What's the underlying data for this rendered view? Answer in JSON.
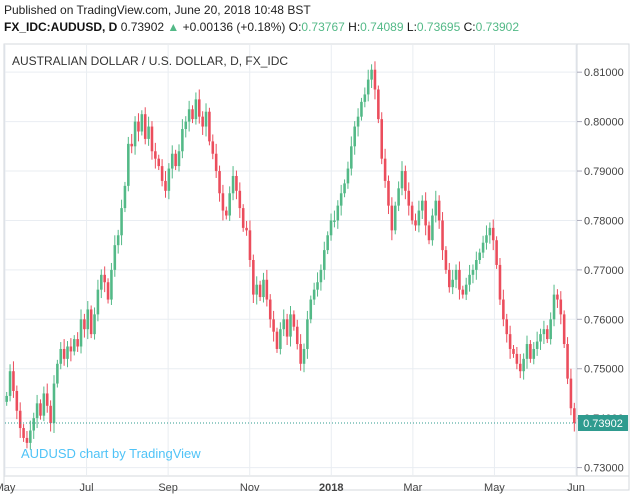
{
  "published": "Published on TradingView.com, June 20, 2018 10:48 BST",
  "header": {
    "symbol": "FX_IDC:AUDUSD, D",
    "last": "0.73902",
    "arrow": "▲",
    "change": "+0.00136 (+0.18%)",
    "o_label": "O:",
    "o": "0.73767",
    "h_label": "H:",
    "h": "0.74089",
    "l_label": "L:",
    "l": "0.73695",
    "c_label": "C:",
    "c": "0.73902"
  },
  "chart_data": {
    "type": "candlestick",
    "title": "AUSTRALIAN DOLLAR / U.S. DOLLAR, D, FX_IDC",
    "watermark": "AUDUSD chart by TradingView",
    "ylim": [
      0.7285,
      0.8155
    ],
    "yticks": [
      "0.81000",
      "0.80000",
      "0.79000",
      "0.78000",
      "0.77000",
      "0.76000",
      "0.75000",
      "0.74000",
      "0.73000"
    ],
    "xticks": [
      "May",
      "Jul",
      "Sep",
      "Nov",
      "2018",
      "Mar",
      "May",
      "Jun"
    ],
    "last_price_label": "0.73902",
    "last_price": 0.73902,
    "colors": {
      "up": "#53b987",
      "down": "#eb4d5c",
      "grid": "#e9edf2",
      "last": "#2f9b8f"
    },
    "grid": true,
    "closes": [
      0.7445,
      0.7495,
      0.7455,
      0.7415,
      0.738,
      0.736,
      0.735,
      0.7375,
      0.74,
      0.743,
      0.7405,
      0.745,
      0.7425,
      0.739,
      0.747,
      0.751,
      0.754,
      0.752,
      0.7545,
      0.7535,
      0.756,
      0.7545,
      0.76,
      0.758,
      0.762,
      0.757,
      0.761,
      0.766,
      0.769,
      0.7675,
      0.764,
      0.77,
      0.775,
      0.777,
      0.7825,
      0.787,
      0.7955,
      0.795,
      0.8,
      0.798,
      0.8015,
      0.7965,
      0.799,
      0.794,
      0.7925,
      0.791,
      0.788,
      0.786,
      0.7905,
      0.7935,
      0.791,
      0.794,
      0.7985,
      0.8,
      0.8025,
      0.8005,
      0.8045,
      0.801,
      0.799,
      0.802,
      0.796,
      0.7935,
      0.79,
      0.7855,
      0.782,
      0.781,
      0.7855,
      0.789,
      0.786,
      0.7825,
      0.7785,
      0.778,
      0.772,
      0.765,
      0.767,
      0.7645,
      0.768,
      0.764,
      0.76,
      0.7575,
      0.754,
      0.758,
      0.76,
      0.7565,
      0.761,
      0.7585,
      0.755,
      0.751,
      0.754,
      0.76,
      0.764,
      0.766,
      0.7675,
      0.77,
      0.774,
      0.777,
      0.78,
      0.78,
      0.783,
      0.7855,
      0.7875,
      0.7905,
      0.795,
      0.799,
      0.801,
      0.804,
      0.8055,
      0.8085,
      0.8105,
      0.8065,
      0.8005,
      0.7925,
      0.788,
      0.783,
      0.778,
      0.783,
      0.7865,
      0.79,
      0.786,
      0.783,
      0.78,
      0.779,
      0.782,
      0.784,
      0.779,
      0.776,
      0.781,
      0.784,
      0.78,
      0.774,
      0.77,
      0.7665,
      0.768,
      0.77,
      0.766,
      0.765,
      0.767,
      0.769,
      0.77,
      0.772,
      0.7735,
      0.7755,
      0.777,
      0.7785,
      0.776,
      0.771,
      0.764,
      0.76,
      0.757,
      0.754,
      0.753,
      0.751,
      0.7495,
      0.752,
      0.755,
      0.752,
      0.754,
      0.7555,
      0.757,
      0.758,
      0.756,
      0.76,
      0.765,
      0.764,
      0.761,
      0.755,
      0.748,
      0.742,
      0.739
    ]
  }
}
